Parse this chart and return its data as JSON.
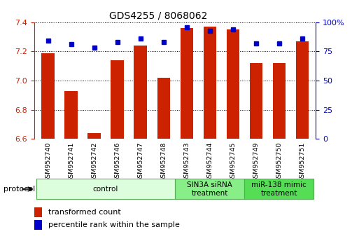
{
  "title": "GDS4255 / 8068062",
  "samples": [
    "GSM952740",
    "GSM952741",
    "GSM952742",
    "GSM952746",
    "GSM952747",
    "GSM952748",
    "GSM952743",
    "GSM952744",
    "GSM952745",
    "GSM952749",
    "GSM952750",
    "GSM952751"
  ],
  "red_values": [
    7.19,
    6.93,
    6.64,
    7.14,
    7.24,
    7.02,
    7.36,
    7.37,
    7.35,
    7.12,
    7.12,
    7.27
  ],
  "blue_values": [
    84,
    81,
    78,
    83,
    86,
    83,
    96,
    93,
    94,
    82,
    82,
    86
  ],
  "ylim_left": [
    6.6,
    7.4
  ],
  "ylim_right": [
    0,
    100
  ],
  "yticks_left": [
    6.6,
    6.8,
    7.0,
    7.2,
    7.4
  ],
  "yticks_right": [
    0,
    25,
    50,
    75,
    100
  ],
  "red_color": "#cc2200",
  "blue_color": "#0000cc",
  "groups": [
    {
      "label": "control",
      "start": 0,
      "end": 6,
      "color": "#ddfedd",
      "edge": "#88cc88"
    },
    {
      "label": "SIN3A siRNA\ntreatment",
      "start": 6,
      "end": 9,
      "color": "#88ee88",
      "edge": "#55aa55"
    },
    {
      "label": "miR-138 mimic\ntreatment",
      "start": 9,
      "end": 12,
      "color": "#55dd55",
      "edge": "#44aa44"
    }
  ],
  "legend_red": "transformed count",
  "legend_blue": "percentile rank within the sample",
  "tick_bg": "#cccccc"
}
